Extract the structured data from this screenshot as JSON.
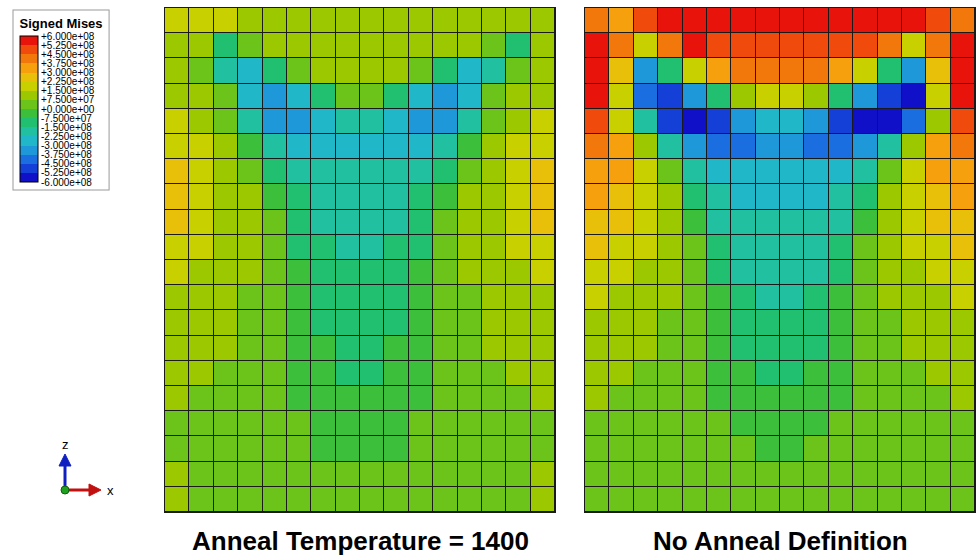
{
  "chart_data": [
    {
      "type": "heatmap",
      "title": "Anneal Temperature = 1400",
      "tick_labels": false,
      "z": [
        [
          190000000.0,
          190000000.0,
          190000000.0,
          110000000.0,
          110000000.0,
          110000000.0,
          110000000.0,
          110000000.0,
          110000000.0,
          110000000.0,
          110000000.0,
          110000000.0,
          110000000.0,
          110000000.0,
          110000000.0,
          110000000.0
        ],
        [
          110000000.0,
          110000000.0,
          -110000000.0,
          40000000.0,
          110000000.0,
          110000000.0,
          110000000.0,
          110000000.0,
          110000000.0,
          110000000.0,
          110000000.0,
          110000000.0,
          110000000.0,
          40000000.0,
          -110000000.0,
          110000000.0
        ],
        [
          110000000.0,
          40000000.0,
          -190000000.0,
          -260000000.0,
          -110000000.0,
          40000000.0,
          110000000.0,
          110000000.0,
          110000000.0,
          110000000.0,
          40000000.0,
          -110000000.0,
          -260000000.0,
          -190000000.0,
          40000000.0,
          110000000.0
        ],
        [
          110000000.0,
          110000000.0,
          40000000.0,
          -260000000.0,
          -340000000.0,
          -260000000.0,
          -110000000.0,
          40000000.0,
          40000000.0,
          -110000000.0,
          -260000000.0,
          -340000000.0,
          -260000000.0,
          40000000.0,
          110000000.0,
          110000000.0
        ],
        [
          190000000.0,
          110000000.0,
          40000000.0,
          -190000000.0,
          -340000000.0,
          -340000000.0,
          -260000000.0,
          -190000000.0,
          -190000000.0,
          -260000000.0,
          -340000000.0,
          -340000000.0,
          -190000000.0,
          40000000.0,
          110000000.0,
          190000000.0
        ],
        [
          190000000.0,
          190000000.0,
          110000000.0,
          -40000000.0,
          -190000000.0,
          -260000000.0,
          -260000000.0,
          -260000000.0,
          -260000000.0,
          -260000000.0,
          -260000000.0,
          -190000000.0,
          -40000000.0,
          110000000.0,
          190000000.0,
          190000000.0
        ],
        [
          260000000.0,
          190000000.0,
          110000000.0,
          40000000.0,
          -110000000.0,
          -190000000.0,
          -190000000.0,
          -190000000.0,
          -190000000.0,
          -190000000.0,
          -190000000.0,
          -110000000.0,
          40000000.0,
          110000000.0,
          190000000.0,
          260000000.0
        ],
        [
          260000000.0,
          190000000.0,
          110000000.0,
          110000000.0,
          -40000000.0,
          -110000000.0,
          -190000000.0,
          -190000000.0,
          -190000000.0,
          -190000000.0,
          -110000000.0,
          -40000000.0,
          110000000.0,
          110000000.0,
          190000000.0,
          260000000.0
        ],
        [
          260000000.0,
          190000000.0,
          110000000.0,
          110000000.0,
          40000000.0,
          -110000000.0,
          -190000000.0,
          -190000000.0,
          -190000000.0,
          -190000000.0,
          -110000000.0,
          40000000.0,
          110000000.0,
          110000000.0,
          190000000.0,
          260000000.0
        ],
        [
          190000000.0,
          190000000.0,
          110000000.0,
          110000000.0,
          40000000.0,
          -110000000.0,
          -110000000.0,
          -190000000.0,
          -190000000.0,
          -110000000.0,
          -110000000.0,
          40000000.0,
          110000000.0,
          110000000.0,
          190000000.0,
          190000000.0
        ],
        [
          190000000.0,
          110000000.0,
          110000000.0,
          110000000.0,
          40000000.0,
          -40000000.0,
          -110000000.0,
          -110000000.0,
          -110000000.0,
          -110000000.0,
          -40000000.0,
          40000000.0,
          110000000.0,
          110000000.0,
          110000000.0,
          190000000.0
        ],
        [
          110000000.0,
          110000000.0,
          110000000.0,
          40000000.0,
          40000000.0,
          -40000000.0,
          -110000000.0,
          -110000000.0,
          -110000000.0,
          -110000000.0,
          -40000000.0,
          40000000.0,
          40000000.0,
          110000000.0,
          110000000.0,
          110000000.0
        ],
        [
          110000000.0,
          110000000.0,
          110000000.0,
          40000000.0,
          40000000.0,
          -40000000.0,
          -110000000.0,
          -110000000.0,
          -110000000.0,
          -110000000.0,
          -40000000.0,
          40000000.0,
          40000000.0,
          110000000.0,
          110000000.0,
          110000000.0
        ],
        [
          110000000.0,
          110000000.0,
          110000000.0,
          40000000.0,
          40000000.0,
          -40000000.0,
          -40000000.0,
          -110000000.0,
          -110000000.0,
          -40000000.0,
          -40000000.0,
          40000000.0,
          40000000.0,
          110000000.0,
          110000000.0,
          110000000.0
        ],
        [
          110000000.0,
          110000000.0,
          40000000.0,
          40000000.0,
          40000000.0,
          -40000000.0,
          -40000000.0,
          -110000000.0,
          -110000000.0,
          -40000000.0,
          -40000000.0,
          40000000.0,
          40000000.0,
          40000000.0,
          110000000.0,
          110000000.0
        ],
        [
          110000000.0,
          40000000.0,
          40000000.0,
          40000000.0,
          40000000.0,
          -40000000.0,
          -40000000.0,
          -40000000.0,
          -40000000.0,
          -40000000.0,
          -40000000.0,
          40000000.0,
          40000000.0,
          40000000.0,
          40000000.0,
          110000000.0
        ],
        [
          40000000.0,
          40000000.0,
          40000000.0,
          40000000.0,
          40000000.0,
          40000000.0,
          -40000000.0,
          -40000000.0,
          -40000000.0,
          -40000000.0,
          40000000.0,
          40000000.0,
          40000000.0,
          40000000.0,
          40000000.0,
          40000000.0
        ],
        [
          40000000.0,
          40000000.0,
          40000000.0,
          40000000.0,
          40000000.0,
          40000000.0,
          -40000000.0,
          -40000000.0,
          -40000000.0,
          -40000000.0,
          40000000.0,
          40000000.0,
          40000000.0,
          40000000.0,
          40000000.0,
          40000000.0
        ],
        [
          110000000.0,
          40000000.0,
          40000000.0,
          40000000.0,
          40000000.0,
          40000000.0,
          40000000.0,
          40000000.0,
          40000000.0,
          40000000.0,
          40000000.0,
          40000000.0,
          40000000.0,
          40000000.0,
          40000000.0,
          110000000.0
        ],
        [
          110000000.0,
          40000000.0,
          40000000.0,
          40000000.0,
          40000000.0,
          40000000.0,
          40000000.0,
          40000000.0,
          40000000.0,
          40000000.0,
          40000000.0,
          40000000.0,
          40000000.0,
          40000000.0,
          40000000.0,
          110000000.0
        ]
      ]
    },
    {
      "type": "heatmap",
      "title": "No Anneal Definition",
      "tick_labels": false,
      "z": [
        [
          410000000.0,
          340000000.0,
          490000000.0,
          560000000.0,
          560000000.0,
          560000000.0,
          560000000.0,
          560000000.0,
          560000000.0,
          560000000.0,
          560000000.0,
          560000000.0,
          560000000.0,
          560000000.0,
          490000000.0,
          410000000.0
        ],
        [
          560000000.0,
          410000000.0,
          190000000.0,
          410000000.0,
          560000000.0,
          490000000.0,
          490000000.0,
          490000000.0,
          490000000.0,
          490000000.0,
          490000000.0,
          490000000.0,
          410000000.0,
          190000000.0,
          410000000.0,
          560000000.0
        ],
        [
          560000000.0,
          260000000.0,
          -340000000.0,
          -110000000.0,
          190000000.0,
          340000000.0,
          410000000.0,
          410000000.0,
          410000000.0,
          410000000.0,
          340000000.0,
          190000000.0,
          -110000000.0,
          -340000000.0,
          260000000.0,
          560000000.0
        ],
        [
          560000000.0,
          190000000.0,
          -410000000.0,
          -490000000.0,
          -340000000.0,
          -110000000.0,
          110000000.0,
          190000000.0,
          190000000.0,
          110000000.0,
          -110000000.0,
          -340000000.0,
          -490000000.0,
          -560000000.0,
          190000000.0,
          560000000.0
        ],
        [
          490000000.0,
          190000000.0,
          -190000000.0,
          -490000000.0,
          -560000000.0,
          -490000000.0,
          -340000000.0,
          -260000000.0,
          -260000000.0,
          -340000000.0,
          -490000000.0,
          -560000000.0,
          -560000000.0,
          -410000000.0,
          110000000.0,
          490000000.0
        ],
        [
          410000000.0,
          340000000.0,
          110000000.0,
          -190000000.0,
          -340000000.0,
          -410000000.0,
          -410000000.0,
          -340000000.0,
          -340000000.0,
          -410000000.0,
          -410000000.0,
          -340000000.0,
          -190000000.0,
          110000000.0,
          340000000.0,
          410000000.0
        ],
        [
          340000000.0,
          340000000.0,
          190000000.0,
          40000000.0,
          -190000000.0,
          -260000000.0,
          -260000000.0,
          -260000000.0,
          -260000000.0,
          -260000000.0,
          -260000000.0,
          -190000000.0,
          40000000.0,
          190000000.0,
          340000000.0,
          340000000.0
        ],
        [
          340000000.0,
          260000000.0,
          190000000.0,
          110000000.0,
          -110000000.0,
          -190000000.0,
          -260000000.0,
          -260000000.0,
          -260000000.0,
          -260000000.0,
          -190000000.0,
          -110000000.0,
          110000000.0,
          190000000.0,
          260000000.0,
          340000000.0
        ],
        [
          260000000.0,
          260000000.0,
          190000000.0,
          110000000.0,
          -40000000.0,
          -190000000.0,
          -190000000.0,
          -190000000.0,
          -190000000.0,
          -190000000.0,
          -190000000.0,
          -40000000.0,
          110000000.0,
          190000000.0,
          260000000.0,
          260000000.0
        ],
        [
          260000000.0,
          190000000.0,
          190000000.0,
          110000000.0,
          40000000.0,
          -110000000.0,
          -190000000.0,
          -190000000.0,
          -190000000.0,
          -190000000.0,
          -110000000.0,
          40000000.0,
          110000000.0,
          190000000.0,
          190000000.0,
          260000000.0
        ],
        [
          190000000.0,
          190000000.0,
          110000000.0,
          110000000.0,
          40000000.0,
          -110000000.0,
          -190000000.0,
          -190000000.0,
          -190000000.0,
          -190000000.0,
          -110000000.0,
          40000000.0,
          110000000.0,
          110000000.0,
          190000000.0,
          190000000.0
        ],
        [
          190000000.0,
          110000000.0,
          110000000.0,
          110000000.0,
          40000000.0,
          -40000000.0,
          -110000000.0,
          -190000000.0,
          -190000000.0,
          -110000000.0,
          -40000000.0,
          40000000.0,
          110000000.0,
          110000000.0,
          110000000.0,
          190000000.0
        ],
        [
          110000000.0,
          110000000.0,
          110000000.0,
          40000000.0,
          40000000.0,
          -40000000.0,
          -110000000.0,
          -110000000.0,
          -110000000.0,
          -110000000.0,
          -40000000.0,
          40000000.0,
          40000000.0,
          110000000.0,
          110000000.0,
          110000000.0
        ],
        [
          110000000.0,
          110000000.0,
          110000000.0,
          40000000.0,
          40000000.0,
          -40000000.0,
          -110000000.0,
          -110000000.0,
          -110000000.0,
          -110000000.0,
          -40000000.0,
          40000000.0,
          40000000.0,
          110000000.0,
          110000000.0,
          110000000.0
        ],
        [
          110000000.0,
          110000000.0,
          40000000.0,
          40000000.0,
          40000000.0,
          -40000000.0,
          -40000000.0,
          -110000000.0,
          -110000000.0,
          -40000000.0,
          -40000000.0,
          40000000.0,
          40000000.0,
          40000000.0,
          110000000.0,
          110000000.0
        ],
        [
          110000000.0,
          40000000.0,
          40000000.0,
          40000000.0,
          40000000.0,
          -40000000.0,
          -40000000.0,
          -40000000.0,
          -40000000.0,
          -40000000.0,
          -40000000.0,
          40000000.0,
          40000000.0,
          40000000.0,
          40000000.0,
          110000000.0
        ],
        [
          40000000.0,
          40000000.0,
          40000000.0,
          40000000.0,
          40000000.0,
          40000000.0,
          -40000000.0,
          -40000000.0,
          -40000000.0,
          -40000000.0,
          40000000.0,
          40000000.0,
          40000000.0,
          40000000.0,
          40000000.0,
          40000000.0
        ],
        [
          40000000.0,
          40000000.0,
          40000000.0,
          40000000.0,
          40000000.0,
          40000000.0,
          40000000.0,
          -40000000.0,
          -40000000.0,
          40000000.0,
          40000000.0,
          40000000.0,
          40000000.0,
          40000000.0,
          40000000.0,
          40000000.0
        ],
        [
          40000000.0,
          40000000.0,
          40000000.0,
          40000000.0,
          40000000.0,
          40000000.0,
          40000000.0,
          40000000.0,
          40000000.0,
          40000000.0,
          40000000.0,
          40000000.0,
          40000000.0,
          40000000.0,
          40000000.0,
          40000000.0
        ],
        [
          40000000.0,
          40000000.0,
          40000000.0,
          40000000.0,
          40000000.0,
          40000000.0,
          40000000.0,
          40000000.0,
          40000000.0,
          40000000.0,
          40000000.0,
          40000000.0,
          40000000.0,
          40000000.0,
          40000000.0,
          40000000.0
        ]
      ]
    }
  ],
  "colorbar": {
    "title": "Signed Mises",
    "range": [
      -600000000,
      600000000
    ],
    "ticks": [
      {
        "value": 600000000,
        "label": "+6.000e+08"
      },
      {
        "value": 525000000,
        "label": "+5.250e+08"
      },
      {
        "value": 450000000,
        "label": "+4.500e+08"
      },
      {
        "value": 375000000,
        "label": "+3.750e+08"
      },
      {
        "value": 300000000,
        "label": "+3.000e+08"
      },
      {
        "value": 225000000,
        "label": "+2.250e+08"
      },
      {
        "value": 150000000,
        "label": "+1.500e+08"
      },
      {
        "value": 75000000,
        "label": "+7.500e+07"
      },
      {
        "value": 0,
        "label": "+0.000e+00"
      },
      {
        "value": -75000000,
        "label": "-7.500e+07"
      },
      {
        "value": -150000000,
        "label": "-1.500e+08"
      },
      {
        "value": -225000000,
        "label": "-2.250e+08"
      },
      {
        "value": -300000000,
        "label": "-3.000e+08"
      },
      {
        "value": -375000000,
        "label": "-3.750e+08"
      },
      {
        "value": -450000000,
        "label": "-4.500e+08"
      },
      {
        "value": -525000000,
        "label": "-5.250e+08"
      },
      {
        "value": -600000000,
        "label": "-6.000e+08"
      }
    ],
    "colors": [
      "#e8140c",
      "#f04a0c",
      "#f2780c",
      "#f5a00c",
      "#e8c00a",
      "#c8d000",
      "#9cc800",
      "#6cc41a",
      "#3cc03c",
      "#20c070",
      "#20c0a0",
      "#20b8c8",
      "#1e98d8",
      "#1a6ee0",
      "#1440d8",
      "#1010c8"
    ]
  },
  "triad": {
    "vertical": "z",
    "horizontal": "x"
  }
}
